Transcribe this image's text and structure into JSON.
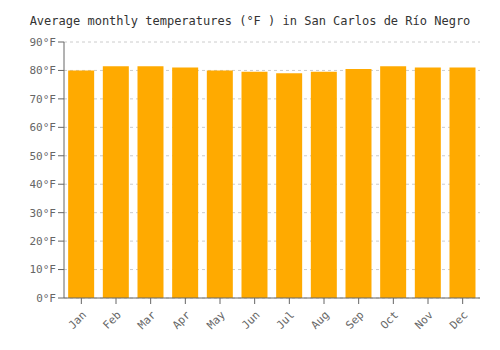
{
  "chart_data": {
    "type": "bar",
    "title": "Average monthly temperatures (°F ) in San Carlos de Río Negro",
    "categories": [
      "Jan",
      "Feb",
      "Mar",
      "Apr",
      "May",
      "Jun",
      "Jul",
      "Aug",
      "Sep",
      "Oct",
      "Nov",
      "Dec"
    ],
    "values": [
      80,
      81.5,
      81.5,
      81,
      80,
      79.5,
      79,
      79.5,
      80.5,
      81.5,
      81,
      81
    ],
    "color": "#FFAA00",
    "ylim": [
      0,
      90
    ],
    "yticks": [
      {
        "value": 0,
        "label": "0°F"
      },
      {
        "value": 10,
        "label": "10°F"
      },
      {
        "value": 20,
        "label": "20°F"
      },
      {
        "value": 30,
        "label": "30°F"
      },
      {
        "value": 40,
        "label": "40°F"
      },
      {
        "value": 50,
        "label": "50°F"
      },
      {
        "value": 60,
        "label": "60°F"
      },
      {
        "value": 70,
        "label": "70°F"
      },
      {
        "value": 80,
        "label": "80°F"
      },
      {
        "value": 90,
        "label": "90°F"
      }
    ],
    "grid": true
  }
}
